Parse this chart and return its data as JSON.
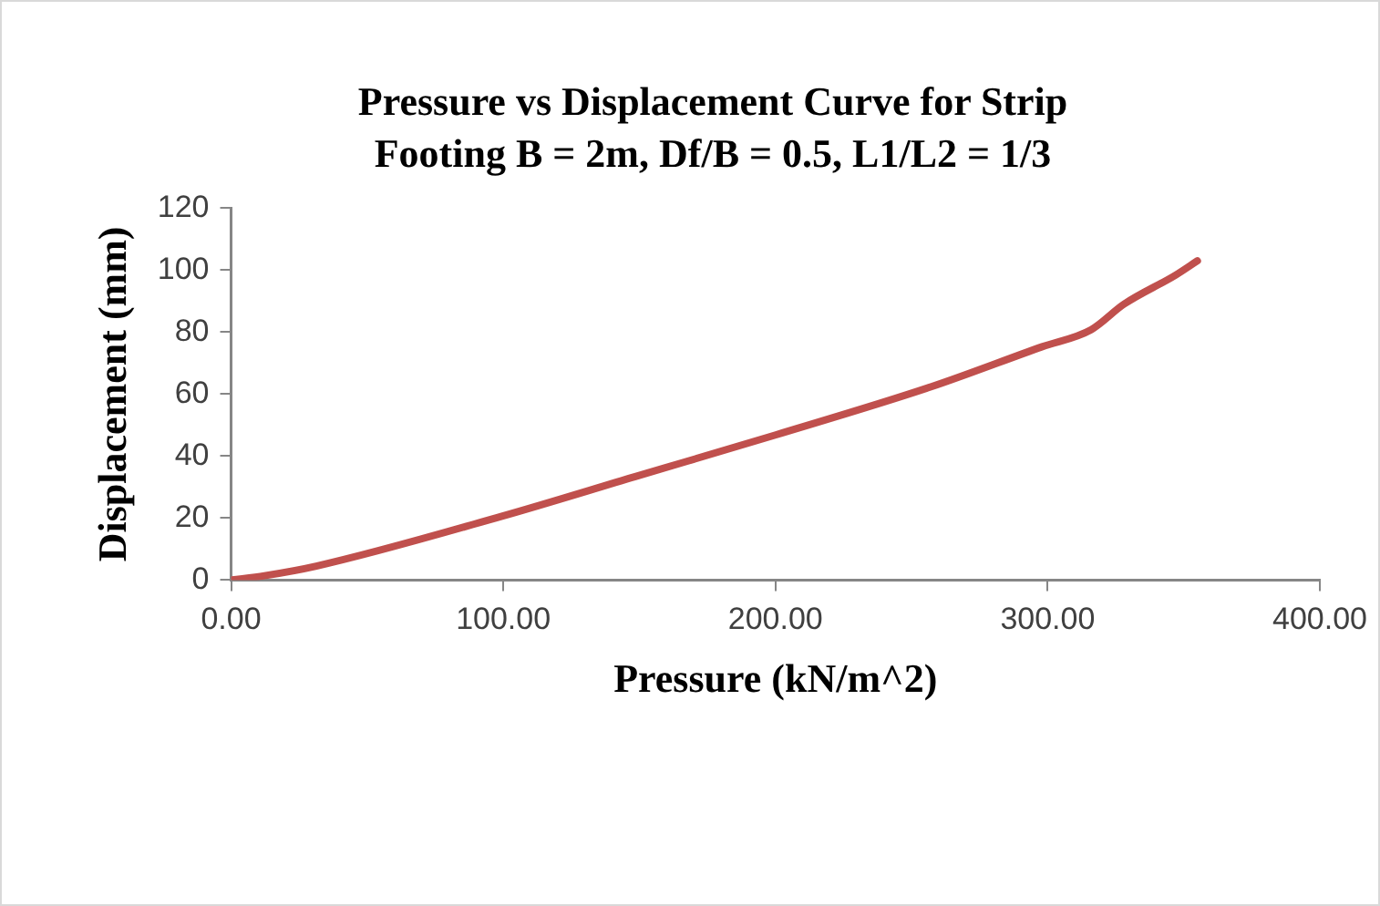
{
  "chart_data": {
    "type": "line",
    "title": [
      "Pressure vs Displacement Curve for Strip",
      "Footing B = 2m, Df/B = 0.5, L1/L2 = 1/3"
    ],
    "xlabel": "Pressure (kN/m^2)",
    "ylabel": "Displacement (mm)",
    "series": [
      {
        "color": "#c0504d",
        "x": [
          0,
          12.3,
          31.3,
          99.5,
          148.5,
          200,
          257,
          298,
          316,
          328,
          347,
          355
        ],
        "values": [
          0,
          1.4,
          4.5,
          20.6,
          33.4,
          46.8,
          62.3,
          75.3,
          80.8,
          89,
          98.4,
          103
        ]
      }
    ],
    "xlim": [
      0,
      400
    ],
    "xticks": [
      {
        "value": 0,
        "label": "0.00"
      },
      {
        "value": 100,
        "label": "100.00"
      },
      {
        "value": 200,
        "label": "200.00"
      },
      {
        "value": 300,
        "label": "300.00"
      },
      {
        "value": 400,
        "label": "400.00"
      }
    ],
    "ylim": [
      0,
      120
    ],
    "yticks": [
      0,
      20,
      40,
      60,
      80,
      100,
      120
    ],
    "grid": false,
    "legend": false,
    "marker": "none",
    "line_style": "solid"
  }
}
